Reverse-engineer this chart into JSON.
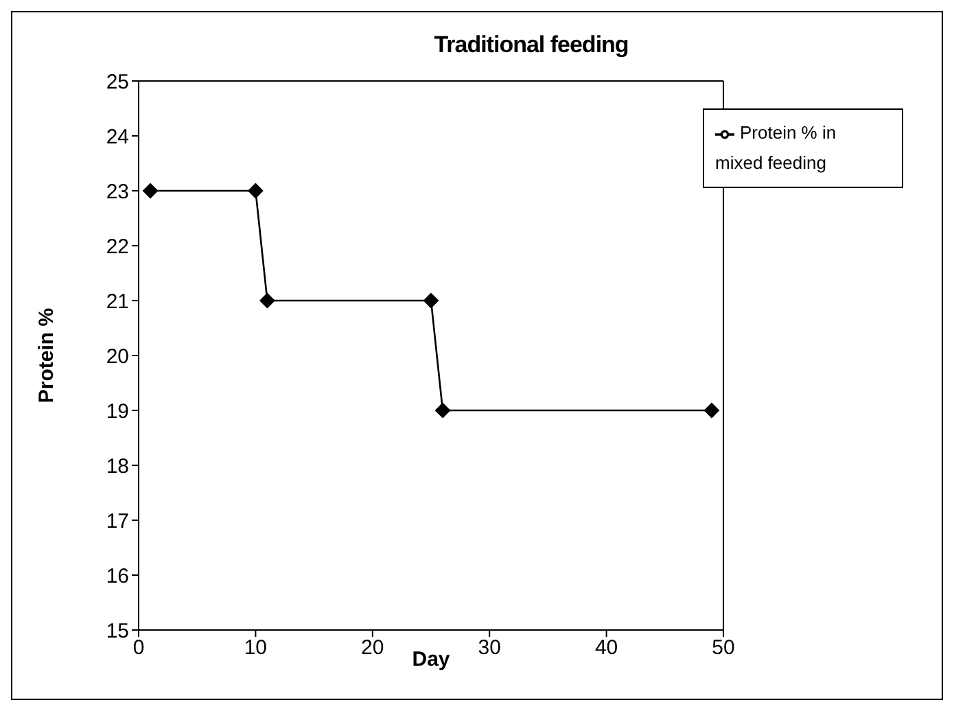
{
  "chart_data": {
    "type": "line",
    "title": "Traditional feeding",
    "xlabel": "Day",
    "ylabel": "Protein %",
    "x": [
      1,
      10,
      11,
      25,
      26,
      49
    ],
    "series": [
      {
        "name": "Protein % in mixed feeding",
        "color": "#000000",
        "values": [
          23,
          23,
          21,
          21,
          19,
          19
        ]
      }
    ],
    "xlim": [
      0,
      50
    ],
    "xticks": [
      0,
      10,
      20,
      30,
      40,
      50
    ],
    "ylim": [
      15,
      25
    ],
    "yticks": [
      15,
      16,
      17,
      18,
      19,
      20,
      21,
      22,
      23,
      24,
      25
    ],
    "legend": "top right",
    "marker": "diamond",
    "line_style": "solid"
  }
}
